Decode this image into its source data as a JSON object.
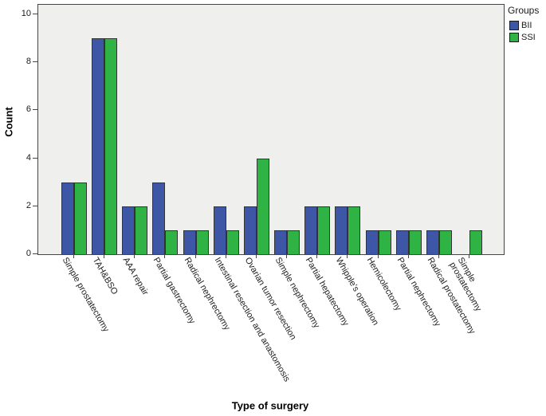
{
  "chart_data": {
    "type": "bar",
    "title": "",
    "xlabel": "Type of surgery",
    "ylabel": "Count",
    "ylim": [
      0,
      10.4
    ],
    "yticks": [
      0,
      2,
      4,
      6,
      8,
      10
    ],
    "grid": false,
    "plot_background": "#EFEFED",
    "legend": {
      "title": "Groups",
      "position": "outside-top-right"
    },
    "categories": [
      "Simple prostatectomy",
      "TAH&BSO",
      "AAA repair",
      "Partial gastrectomy",
      "Radical nephrectomy",
      "Intestinal resection and anastomosis",
      "Ovarian tumor resection",
      "Simple nephrectomy",
      "Partial hepatectomy",
      "Whipple's operation",
      "Hemicolectomy",
      "Partial nephrectomy",
      "Radical prostatectomy",
      "Simple\nprostatectomy"
    ],
    "series": [
      {
        "name": "BII",
        "color": "#3D56A6",
        "values": [
          3,
          9,
          2,
          3,
          1,
          2,
          2,
          1,
          2,
          2,
          1,
          1,
          1,
          0
        ]
      },
      {
        "name": "SSI",
        "color": "#2FB344",
        "values": [
          3,
          9,
          2,
          1,
          1,
          1,
          4,
          1,
          2,
          2,
          1,
          1,
          1,
          1
        ]
      }
    ]
  }
}
